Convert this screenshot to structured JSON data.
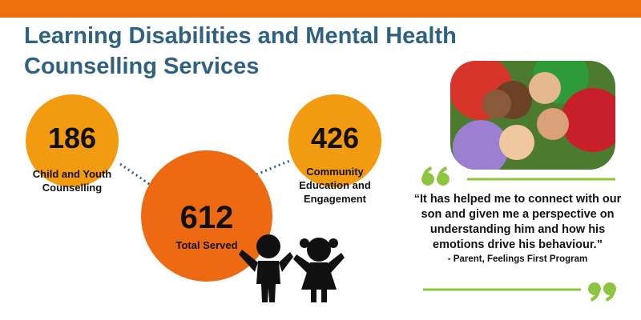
{
  "title": "Learning Disabilities and Mental Health Counselling Services",
  "stats": [
    {
      "value": 186,
      "label": "Child and Youth Counselling"
    },
    {
      "value": 612,
      "label": "Total Served"
    },
    {
      "value": 426,
      "label": "Community Education and Engagement"
    }
  ],
  "quote": {
    "text": "“It has helped me to connect with our son and given me a perspective on understanding him and how his emotions drive his behaviour.”",
    "attribution": "- Parent, Feelings First Program"
  }
}
